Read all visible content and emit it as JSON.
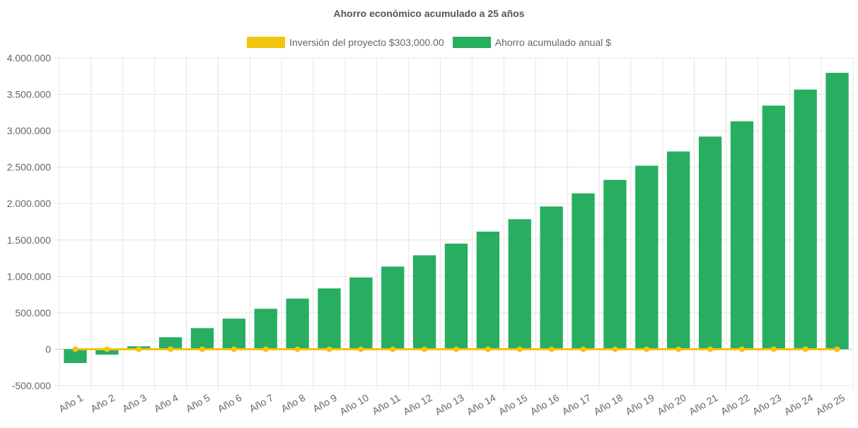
{
  "chart_data": {
    "type": "bar",
    "title": "Ahorro económico acumulado a 25 años",
    "categories": [
      "Año 1",
      "Año 2",
      "Año 3",
      "Año 4",
      "Año 5",
      "Año 6",
      "Año 7",
      "Año 8",
      "Año 9",
      "Año 10",
      "Año 11",
      "Año 12",
      "Año 13",
      "Año 14",
      "Año 15",
      "Año 16",
      "Año 17",
      "Año 18",
      "Año 19",
      "Año 20",
      "Año 21",
      "Año 22",
      "Año 23",
      "Año 24",
      "Año 25"
    ],
    "series": [
      {
        "name": "Inversión del proyecto $303,000.00",
        "type": "line",
        "color": "#f1c40f",
        "values": [
          0,
          0,
          0,
          0,
          0,
          0,
          0,
          0,
          0,
          0,
          0,
          0,
          0,
          0,
          0,
          0,
          0,
          0,
          0,
          0,
          0,
          0,
          0,
          0,
          0
        ]
      },
      {
        "name": "Ahorro acumulado anual $",
        "type": "bar",
        "color": "#27ae60",
        "values": [
          -190000,
          -75000,
          40000,
          165000,
          290000,
          420000,
          555000,
          695000,
          835000,
          985000,
          1135000,
          1290000,
          1450000,
          1615000,
          1785000,
          1960000,
          2140000,
          2325000,
          2520000,
          2715000,
          2920000,
          3130000,
          3345000,
          3565000,
          3795000
        ]
      }
    ],
    "y_ticks": [
      "4.000.000",
      "3.500.000",
      "3.000.000",
      "2.500.000",
      "2.000.000",
      "1.500.000",
      "1.000.000",
      "500.000",
      "0",
      "-500.000"
    ],
    "ylim": [
      -500000,
      4000000
    ],
    "grid": true,
    "legend_position": "top"
  }
}
